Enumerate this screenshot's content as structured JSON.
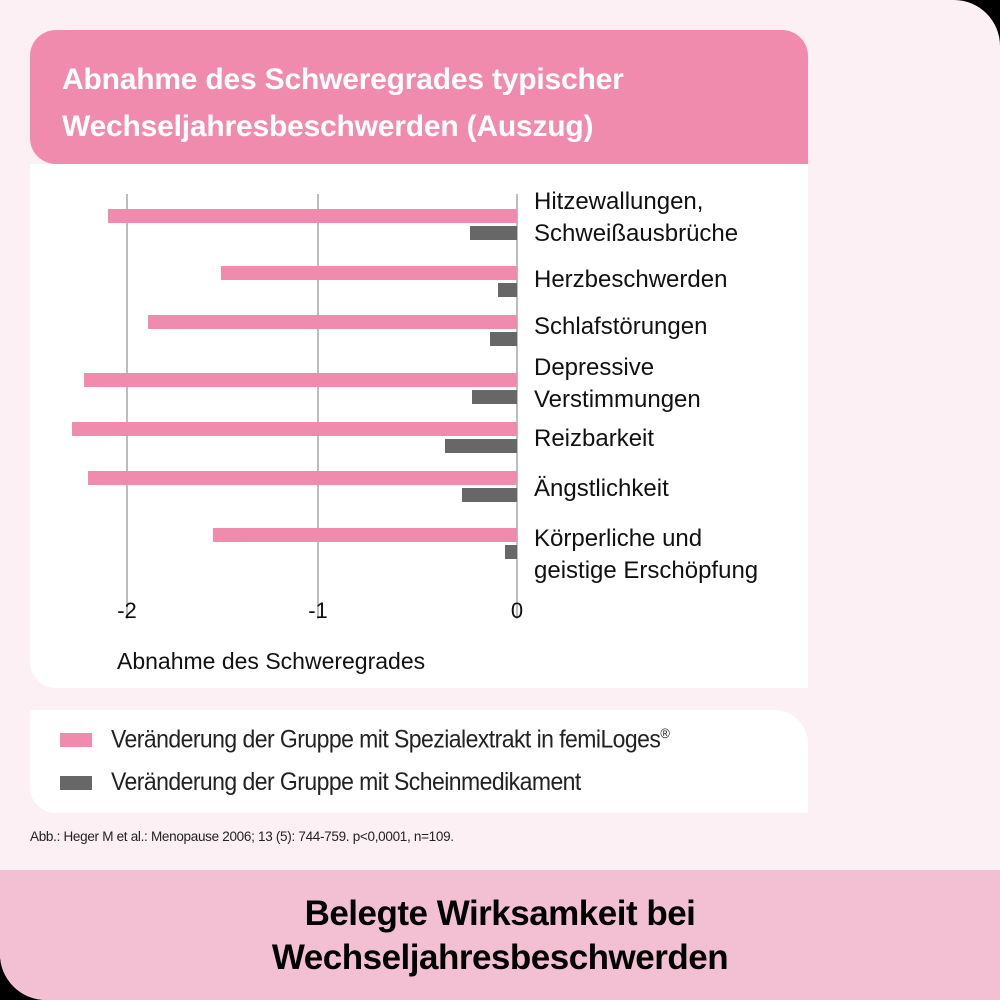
{
  "title": {
    "line1": "Abnahme des Schweregrades typischer",
    "line2": "Wechseljahresbeschwerden (Auszug)"
  },
  "colors": {
    "pink": "#f08bae",
    "gray": "#676767",
    "page_bg": "#fdf0f4",
    "footer_bg": "#f3bfd3"
  },
  "chart_data": {
    "type": "bar",
    "orientation": "horizontal",
    "title": "Abnahme des Schweregrades typischer Wechseljahresbeschwerden (Auszug)",
    "xlabel": "Abnahme des Schweregrades",
    "ylabel": "",
    "xlim": [
      -2.3,
      0
    ],
    "xticks": [
      "-2",
      "-1",
      "0"
    ],
    "grid": true,
    "legend_position": "bottom",
    "categories": [
      "Hitzewallungen, Schweißausbrüche",
      "Herzbeschwerden",
      "Schlafstörungen",
      "Depressive Verstimmungen",
      "Reizbarkeit",
      "Ängstlichkeit",
      "Körperliche und geistige Erschöpfung"
    ],
    "series": [
      {
        "name": "Veränderung der Gruppe mit Spezialextrakt in femiLoges®",
        "color": "#f08bae",
        "values": [
          -2.1,
          -1.52,
          -1.89,
          -2.22,
          -2.28,
          -2.2,
          -1.56
        ]
      },
      {
        "name": "Veränderung der Gruppe mit Scheinmedikament",
        "color": "#676767",
        "values": [
          -0.24,
          -0.1,
          -0.14,
          -0.23,
          -0.37,
          -0.28,
          -0.06
        ]
      }
    ]
  },
  "axis": {
    "tick_neg2": "-2",
    "tick_neg1": "-1",
    "tick_0": "0",
    "xlabel": "Abnahme des Schweregrades"
  },
  "categories": {
    "c1_l1": "Hitzewallungen,",
    "c1_l2": "Schweißausbrüche",
    "c2": "Herzbeschwerden",
    "c3": "Schlafstörungen",
    "c4_l1": "Depressive",
    "c4_l2": "Verstimmungen",
    "c5": "Reizbarkeit",
    "c6": "Ängstlichkeit",
    "c7_l1": "Körperliche und",
    "c7_l2": "geistige Erschöpfung"
  },
  "legend": {
    "item1": "Veränderung der Gruppe mit Spezialextrakt in femiLoges",
    "item1_mark": "®",
    "item2": "Veränderung der Gruppe mit Scheinmedikament"
  },
  "citation": "Abb.: Heger M et al.: Menopause 2006; 13 (5): 744-759. p<0,0001, n=109.",
  "footer": {
    "line1": "Belegte Wirksamkeit bei",
    "line2": "Wechseljahresbeschwerden"
  }
}
